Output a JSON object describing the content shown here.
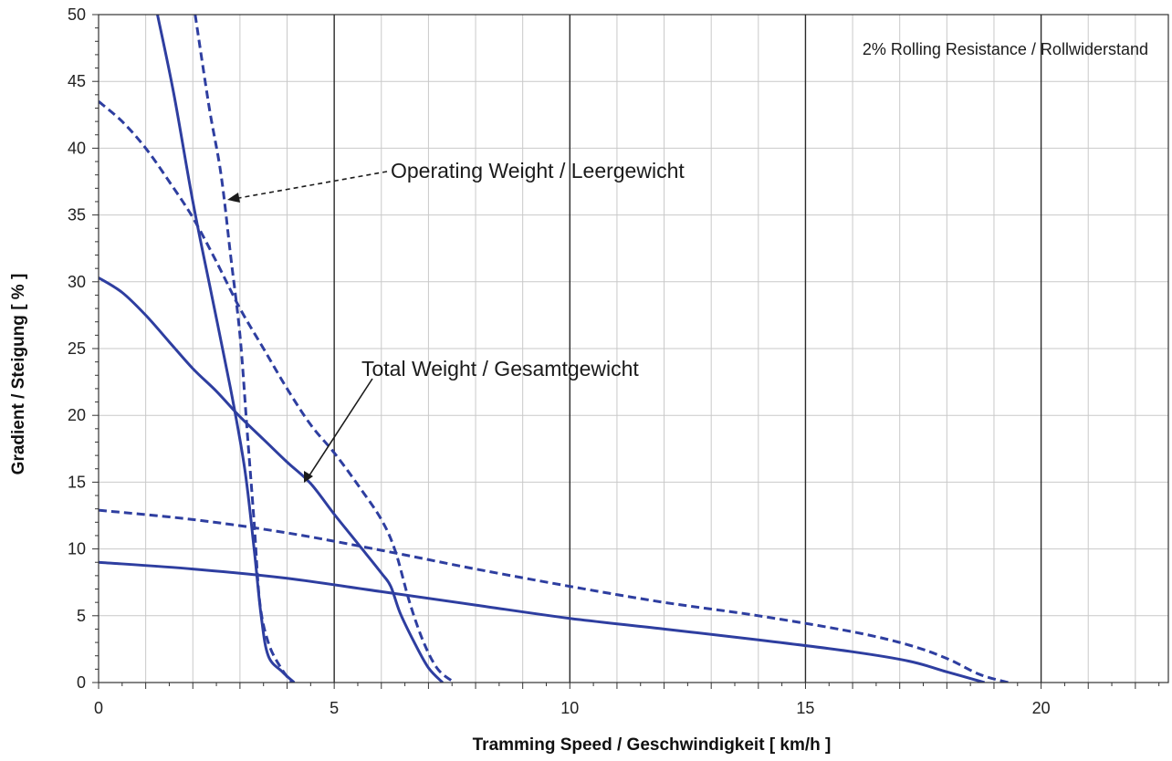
{
  "chart_data": {
    "type": "line",
    "xlabel": "Tramming Speed / Geschwindigkeit   [ km/h ]",
    "ylabel": "Gradient / Steigung   [ % ]",
    "xlim": [
      0,
      22.7
    ],
    "ylim": [
      0,
      50
    ],
    "x_ticks": [
      0,
      5,
      10,
      15,
      20
    ],
    "y_ticks": [
      0,
      5,
      10,
      15,
      20,
      25,
      30,
      35,
      40,
      45,
      50
    ],
    "grid": true,
    "note": "2% Rolling Resistance / Rollwiderstand",
    "annotations": [
      {
        "text": "Operating Weight / Leergewicht",
        "points_to": "dashed curves"
      },
      {
        "text": "Total Weight / Gesamtgewicht",
        "points_to": "solid curves"
      }
    ],
    "series": [
      {
        "style": "solid",
        "color": "#2e3ea0",
        "points": [
          [
            1.25,
            50
          ],
          [
            1.6,
            44
          ],
          [
            2.0,
            36
          ],
          [
            2.4,
            29
          ],
          [
            2.8,
            22
          ],
          [
            3.1,
            16
          ],
          [
            3.3,
            10
          ],
          [
            3.45,
            5
          ],
          [
            3.6,
            2
          ],
          [
            3.9,
            0.8
          ],
          [
            4.15,
            0
          ]
        ]
      },
      {
        "style": "solid",
        "color": "#2e3ea0",
        "points": [
          [
            0,
            30.3
          ],
          [
            0.5,
            29.2
          ],
          [
            1.0,
            27.5
          ],
          [
            1.5,
            25.5
          ],
          [
            2.0,
            23.5
          ],
          [
            2.5,
            21.8
          ],
          [
            3.0,
            19.9
          ],
          [
            3.5,
            18.2
          ],
          [
            4.0,
            16.5
          ],
          [
            4.5,
            14.9
          ],
          [
            5.0,
            12.6
          ],
          [
            5.5,
            10.4
          ],
          [
            6.0,
            8.2
          ],
          [
            6.2,
            7.2
          ],
          [
            6.4,
            5.2
          ],
          [
            6.7,
            3.0
          ],
          [
            7.0,
            1.1
          ],
          [
            7.3,
            0
          ]
        ]
      },
      {
        "style": "solid",
        "color": "#2e3ea0",
        "points": [
          [
            0,
            9.0
          ],
          [
            2,
            8.5
          ],
          [
            4,
            7.8
          ],
          [
            6,
            6.8
          ],
          [
            8,
            5.8
          ],
          [
            10,
            4.8
          ],
          [
            12,
            4.0
          ],
          [
            14,
            3.2
          ],
          [
            16,
            2.3
          ],
          [
            17.2,
            1.6
          ],
          [
            18,
            0.8
          ],
          [
            18.8,
            0
          ]
        ]
      },
      {
        "style": "dashed",
        "color": "#2e3ea0",
        "points": [
          [
            2.05,
            50
          ],
          [
            2.35,
            43
          ],
          [
            2.6,
            38
          ],
          [
            2.8,
            32
          ],
          [
            3.0,
            26
          ],
          [
            3.15,
            19
          ],
          [
            3.3,
            12
          ],
          [
            3.42,
            6
          ],
          [
            3.6,
            3
          ],
          [
            3.85,
            1.2
          ],
          [
            4.1,
            0
          ]
        ]
      },
      {
        "style": "dashed",
        "color": "#2e3ea0",
        "points": [
          [
            0,
            43.5
          ],
          [
            0.5,
            42
          ],
          [
            1.0,
            40
          ],
          [
            1.5,
            37.5
          ],
          [
            2.0,
            34.8
          ],
          [
            2.5,
            31.5
          ],
          [
            3.0,
            28.0
          ],
          [
            3.5,
            25.0
          ],
          [
            4.0,
            22.0
          ],
          [
            4.5,
            19.3
          ],
          [
            5.0,
            17.2
          ],
          [
            5.5,
            14.8
          ],
          [
            6.0,
            12.2
          ],
          [
            6.3,
            9.8
          ],
          [
            6.6,
            6.0
          ],
          [
            6.9,
            3.0
          ],
          [
            7.2,
            1.0
          ],
          [
            7.55,
            0
          ]
        ]
      },
      {
        "style": "dashed",
        "color": "#2e3ea0",
        "points": [
          [
            0,
            12.9
          ],
          [
            2,
            12.2
          ],
          [
            4,
            11.2
          ],
          [
            6,
            9.9
          ],
          [
            8,
            8.5
          ],
          [
            10,
            7.2
          ],
          [
            12,
            6.0
          ],
          [
            14,
            5.0
          ],
          [
            16,
            3.8
          ],
          [
            17.2,
            2.8
          ],
          [
            18,
            1.8
          ],
          [
            18.7,
            0.6
          ],
          [
            19.3,
            0
          ]
        ]
      }
    ]
  }
}
